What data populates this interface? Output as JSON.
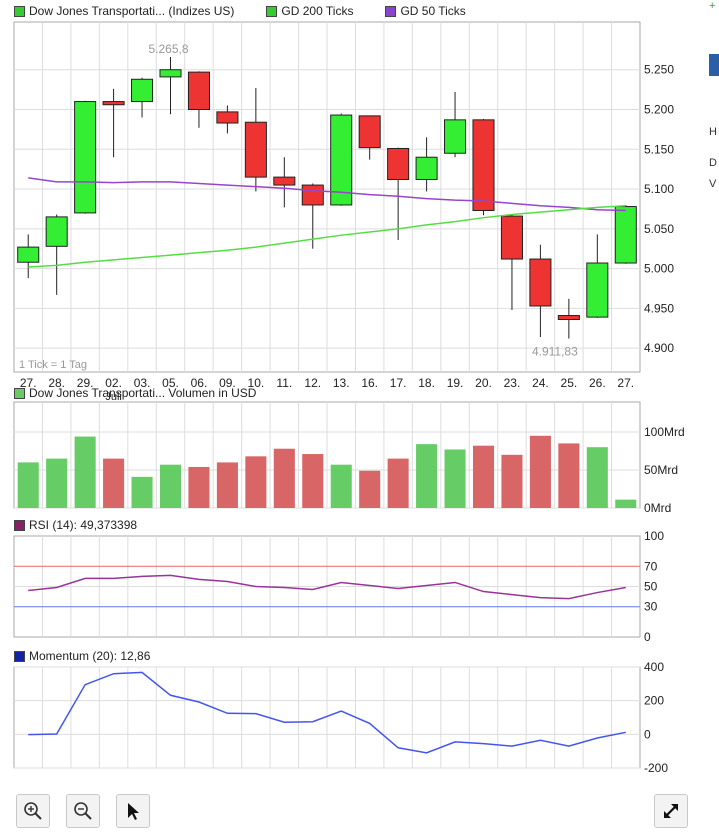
{
  "legend_main": [
    {
      "label": "Dow Jones Transportati... (Indizes US)",
      "color": "#33cc33"
    },
    {
      "label": "GD 200 Ticks",
      "color": "#33cc33"
    },
    {
      "label": "GD 50 Ticks",
      "color": "#8844cc"
    }
  ],
  "price_annotations": {
    "high": "5.265,8",
    "low": "4.911,83",
    "tick_note": "1 Tick = 1 Tag"
  },
  "x_labels": [
    "27.",
    "28.",
    "29.",
    "02.",
    "03.",
    "05.",
    "06.",
    "09.",
    "10.",
    "11.",
    "12.",
    "13.",
    "16.",
    "17.",
    "18.",
    "19.",
    "20.",
    "23.",
    "24.",
    "25.",
    "26.",
    "27."
  ],
  "x_month": "Juli",
  "volume_legend": "Dow Jones Transportati... Volumen in USD",
  "rsi_legend": "RSI (14): 49,373398",
  "momentum_legend": "Momentum (20): 12,86",
  "colors": {
    "up": "#33ee33",
    "down": "#ee3333",
    "sma200": "#55dd44",
    "sma50": "#9944cc",
    "rsi": "#993399",
    "momentum": "#4455ee",
    "vol_up": "#66cc66",
    "vol_down": "#d96666",
    "rsi70": "#ee6666",
    "rsi30": "#6677ee",
    "grid": "#dddddd"
  },
  "toolbar": {
    "zoom_in_icon": "zoom-in-icon",
    "zoom_out_icon": "zoom-out-icon",
    "pointer_icon": "pointer-icon",
    "expand_icon": "expand-icon"
  },
  "sidebar_fragments": [
    "+",
    "H",
    "D",
    "V"
  ],
  "chart_data": [
    {
      "type": "candlestick",
      "title": "Dow Jones Transportati... (Indizes US)",
      "categories": [
        "27.",
        "28.",
        "29.",
        "02.",
        "03.",
        "05.",
        "06.",
        "09.",
        "10.",
        "11.",
        "12.",
        "13.",
        "16.",
        "17.",
        "18.",
        "19.",
        "20.",
        "23.",
        "24.",
        "25.",
        "26.",
        "27."
      ],
      "ylim": [
        4870,
        5310
      ],
      "yticks": [
        4900,
        4950,
        5000,
        5050,
        5100,
        5150,
        5200,
        5250
      ],
      "ytick_labels": [
        "4.900",
        "4.950",
        "5.000",
        "5.050",
        "5.100",
        "5.150",
        "5.200",
        "5.250"
      ],
      "candles": [
        {
          "o": 5008,
          "h": 5043,
          "l": 4988,
          "c": 5027
        },
        {
          "o": 5028,
          "h": 5068,
          "l": 4967,
          "c": 5065
        },
        {
          "o": 5070,
          "h": 5211,
          "l": 5069,
          "c": 5210
        },
        {
          "o": 5210,
          "h": 5226,
          "l": 5140,
          "c": 5206
        },
        {
          "o": 5210,
          "h": 5240,
          "l": 5190,
          "c": 5238
        },
        {
          "o": 5241,
          "h": 5266,
          "l": 5194,
          "c": 5250
        },
        {
          "o": 5247,
          "h": 5248,
          "l": 5177,
          "c": 5200
        },
        {
          "o": 5197,
          "h": 5205,
          "l": 5170,
          "c": 5183
        },
        {
          "o": 5184,
          "h": 5227,
          "l": 5097,
          "c": 5115
        },
        {
          "o": 5115,
          "h": 5140,
          "l": 5077,
          "c": 5105
        },
        {
          "o": 5105,
          "h": 5107,
          "l": 5025,
          "c": 5080
        },
        {
          "o": 5080,
          "h": 5195,
          "l": 5079,
          "c": 5193
        },
        {
          "o": 5192,
          "h": 5192,
          "l": 5137,
          "c": 5152
        },
        {
          "o": 5151,
          "h": 5152,
          "l": 5036,
          "c": 5112
        },
        {
          "o": 5112,
          "h": 5165,
          "l": 5097,
          "c": 5140
        },
        {
          "o": 5145,
          "h": 5222,
          "l": 5140,
          "c": 5187
        },
        {
          "o": 5187,
          "h": 5188,
          "l": 5067,
          "c": 5073
        },
        {
          "o": 5066,
          "h": 5068,
          "l": 4948,
          "c": 5012
        },
        {
          "o": 5012,
          "h": 5030,
          "l": 4914,
          "c": 4953
        },
        {
          "o": 4941,
          "h": 4962,
          "l": 4912,
          "c": 4936
        },
        {
          "o": 4939,
          "h": 5043,
          "l": 4938,
          "c": 5007
        },
        {
          "o": 5007,
          "h": 5080,
          "l": 5006,
          "c": 5078
        }
      ],
      "series": [
        {
          "name": "GD 200 Ticks",
          "values": [
            5002,
            5004,
            5008,
            5011,
            5014,
            5017,
            5020,
            5023,
            5027,
            5032,
            5037,
            5042,
            5046,
            5050,
            5055,
            5059,
            5064,
            5068,
            5071,
            5074,
            5077,
            5079
          ]
        },
        {
          "name": "GD 50 Ticks",
          "values": [
            5114,
            5109,
            5109,
            5108,
            5109,
            5109,
            5107,
            5105,
            5103,
            5101,
            5098,
            5096,
            5093,
            5091,
            5088,
            5086,
            5085,
            5082,
            5079,
            5077,
            5074,
            5073
          ]
        }
      ]
    },
    {
      "type": "bar",
      "title": "Dow Jones Transportati... Volumen in USD",
      "categories": [
        "27.",
        "28.",
        "29.",
        "02.",
        "03.",
        "05.",
        "06.",
        "09.",
        "10.",
        "11.",
        "12.",
        "13.",
        "16.",
        "17.",
        "18.",
        "19.",
        "20.",
        "23.",
        "24.",
        "25.",
        "26.",
        "27."
      ],
      "ylim": [
        0,
        100
      ],
      "ytick_labels": [
        "0Mrd",
        "50Mrd",
        "100Mrd"
      ],
      "yticks": [
        0,
        50,
        100
      ],
      "values": [
        60,
        65,
        94,
        65,
        41,
        57,
        54,
        60,
        68,
        78,
        71,
        57,
        49,
        65,
        84,
        77,
        82,
        70,
        95,
        85,
        80,
        11
      ],
      "up": [
        true,
        true,
        true,
        false,
        true,
        true,
        false,
        false,
        false,
        false,
        false,
        true,
        false,
        false,
        true,
        true,
        false,
        false,
        false,
        false,
        true,
        true
      ]
    },
    {
      "type": "line",
      "title": "RSI (14): 49,373398",
      "ylim": [
        0,
        100
      ],
      "yticks": [
        0,
        30,
        50,
        70,
        100
      ],
      "ytick_labels": [
        "0",
        "30",
        "50",
        "70",
        "100"
      ],
      "reference_lines": [
        70,
        30
      ],
      "series": [
        {
          "name": "RSI (14)",
          "values": [
            46,
            49,
            58,
            58,
            60,
            61,
            57,
            55,
            50,
            49,
            47,
            54,
            51,
            48,
            51,
            54,
            45,
            42,
            39,
            38,
            44,
            49
          ]
        }
      ]
    },
    {
      "type": "line",
      "title": "Momentum (20): 12,86",
      "ylim": [
        -200,
        400
      ],
      "yticks": [
        -200,
        0,
        200,
        400
      ],
      "ytick_labels": [
        "-200",
        "0",
        "200",
        "400"
      ],
      "series": [
        {
          "name": "Momentum (20)",
          "values": [
            -2,
            2,
            295,
            360,
            368,
            232,
            192,
            125,
            123,
            72,
            75,
            138,
            65,
            -80,
            -110,
            -45,
            -55,
            -70,
            -35,
            -70,
            -22,
            12
          ]
        }
      ]
    }
  ]
}
